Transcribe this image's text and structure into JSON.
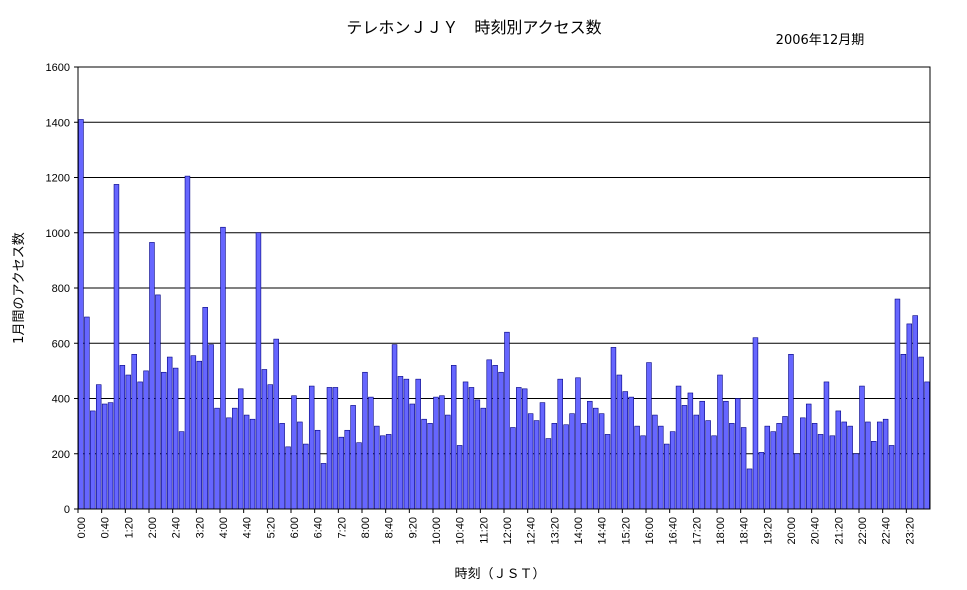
{
  "chart_data": {
    "type": "bar",
    "title": "テレホンＪＪＹ　時刻別アクセス数",
    "period": "2006年12月期",
    "xlabel": "時刻（ＪＳＴ）",
    "ylabel": "1月間のアクセス数",
    "ylim": [
      0,
      1600
    ],
    "yticks": [
      0,
      200,
      400,
      600,
      800,
      1000,
      1200,
      1400,
      1600
    ],
    "grid": true,
    "bar_color": "#6666ff",
    "bar_stroke": "#000080",
    "x_tick_labels": [
      "0:00",
      "0:40",
      "1:20",
      "2:00",
      "2:40",
      "3:20",
      "4:00",
      "4:40",
      "5:20",
      "6:00",
      "6:40",
      "7:20",
      "8:00",
      "8:40",
      "9:20",
      "10:00",
      "10:40",
      "11:20",
      "12:00",
      "12:40",
      "13:20",
      "14:00",
      "14:40",
      "15:20",
      "16:00",
      "16:40",
      "17:20",
      "18:00",
      "18:40",
      "19:20",
      "20:00",
      "20:40",
      "21:20",
      "22:00",
      "22:40",
      "23:20"
    ],
    "values": [
      1410,
      695,
      355,
      450,
      380,
      385,
      1175,
      520,
      485,
      560,
      460,
      500,
      965,
      775,
      495,
      550,
      510,
      280,
      1205,
      555,
      535,
      730,
      595,
      365,
      1020,
      330,
      365,
      435,
      340,
      325,
      1000,
      505,
      450,
      615,
      310,
      225,
      410,
      315,
      235,
      445,
      285,
      165,
      440,
      440,
      260,
      285,
      375,
      240,
      495,
      405,
      300,
      265,
      270,
      595,
      480,
      470,
      380,
      470,
      325,
      310,
      405,
      410,
      340,
      520,
      230,
      460,
      440,
      395,
      365,
      540,
      520,
      495,
      640,
      295,
      440,
      435,
      345,
      320,
      385,
      255,
      310,
      470,
      305,
      345,
      475,
      310,
      390,
      365,
      345,
      270,
      585,
      485,
      425,
      405,
      300,
      265,
      530,
      340,
      300,
      235,
      280,
      445,
      375,
      420,
      340,
      390,
      320,
      265,
      485,
      390,
      310,
      400,
      295,
      145,
      620,
      205,
      300,
      280,
      310,
      335,
      560,
      200,
      330,
      380,
      310,
      270,
      460,
      265,
      355,
      315,
      300,
      200,
      445,
      315,
      245,
      315,
      325,
      230,
      760,
      560,
      670,
      700,
      550,
      460
    ]
  }
}
